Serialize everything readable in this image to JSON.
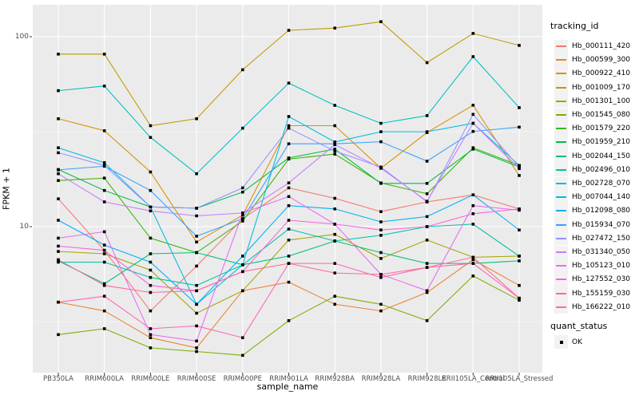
{
  "figure": {
    "y_axis": {
      "label": "FPKM + 1",
      "ticks": [
        {
          "value": 100,
          "label": "100"
        },
        {
          "value": 10,
          "label": "10"
        }
      ]
    },
    "x_axis": {
      "label": "sample_name"
    },
    "legend": {
      "tracking_title": "tracking_id",
      "quant_title": "quant_status",
      "quant_items": [
        {
          "label": "OK",
          "marker": "filled-black-square"
        }
      ]
    },
    "colors": {
      "panel_bg": "#EBEBEB",
      "grid": "#FFFFFF",
      "point": "#000000",
      "tick_text": "#4D4D4D",
      "axis_title_text": "#000000",
      "legend_key_bg": "#F2F2F2"
    }
  },
  "chart_data": {
    "type": "line",
    "title": "",
    "xlabel": "sample_name",
    "ylabel": "FPKM + 1",
    "y_scale": "log10",
    "ylim": [
      1.7,
      147
    ],
    "grid": true,
    "legend_position": "right",
    "point_marker": "black-square (quant_status = OK)",
    "categories": [
      "PB350LA",
      "RRIM600LA",
      "RRIM600LE",
      "RRIM600SE",
      "RRIM600PE",
      "RRIM901LA",
      "RRIM928BA",
      "RRIM928LA",
      "RRIM928LE",
      "RRII105LA_Control",
      "RRII105LA_Stressed"
    ],
    "series": [
      {
        "name": "Hb_000111_420",
        "color": "#F8766D",
        "values": [
          14,
          7.5,
          3.6,
          6.2,
          11,
          16,
          14.1,
          12,
          13.5,
          14.7,
          12.4
        ]
      },
      {
        "name": "Hb_000599_300",
        "color": "#EA8331",
        "values": [
          4.0,
          3.6,
          2.6,
          2.3,
          4.6,
          5.1,
          3.9,
          3.6,
          4.5,
          6.7,
          4.9
        ]
      },
      {
        "name": "Hb_000922_410",
        "color": "#D89000",
        "values": [
          37,
          32,
          19.4,
          8.3,
          11.5,
          34,
          34,
          20.3,
          31.3,
          43.6,
          18.6
        ]
      },
      {
        "name": "Hb_001009_170",
        "color": "#C09B00",
        "values": [
          81,
          81,
          34,
          37,
          67,
          108,
          111,
          120,
          73,
          104,
          90
        ]
      },
      {
        "name": "Hb_001301_100",
        "color": "#A3A500",
        "values": [
          7.4,
          7.2,
          5.9,
          3.5,
          4.6,
          8.5,
          9.1,
          6.8,
          8.5,
          6.9,
          7.0
        ]
      },
      {
        "name": "Hb_001545_080",
        "color": "#7CAE00",
        "values": [
          2.7,
          2.9,
          2.3,
          2.2,
          2.1,
          3.2,
          4.3,
          3.9,
          3.2,
          5.5,
          4.1
        ]
      },
      {
        "name": "Hb_001579_220",
        "color": "#39B600",
        "values": [
          17.5,
          18,
          8.7,
          7.3,
          10.7,
          22.7,
          24.1,
          17,
          14.9,
          26,
          21
        ]
      },
      {
        "name": "Hb_001959_210",
        "color": "#00BB4E",
        "values": [
          20,
          15.5,
          12.7,
          12.5,
          15.2,
          23,
          25.6,
          16.9,
          16.9,
          25.6,
          20.6
        ]
      },
      {
        "name": "Hb_002044_150",
        "color": "#00BF7D",
        "values": [
          6.6,
          5.0,
          7.2,
          7.3,
          6.3,
          7.0,
          8.4,
          7.3,
          6.4,
          6.4,
          6.6
        ]
      },
      {
        "name": "Hb_002496_010",
        "color": "#00C1A3",
        "values": [
          6.5,
          6.5,
          5.4,
          4.9,
          6.3,
          9.7,
          8.4,
          9.0,
          10.0,
          10.3,
          7.0
        ]
      },
      {
        "name": "Hb_002728_070",
        "color": "#00BFC4",
        "values": [
          52,
          55,
          29.5,
          19,
          33,
          57,
          43.5,
          35,
          38.4,
          78.5,
          42.3
        ]
      },
      {
        "name": "Hb_007044_140",
        "color": "#00BADE",
        "values": [
          26,
          21.7,
          12.7,
          3.9,
          6.3,
          38,
          27.9,
          31.6,
          31.6,
          35,
          21
        ]
      },
      {
        "name": "Hb_012098_080",
        "color": "#00B0F6",
        "values": [
          10.8,
          8.0,
          6.5,
          3.9,
          7.0,
          12.9,
          12.4,
          10.6,
          11.3,
          14.7,
          9.6
        ]
      },
      {
        "name": "Hb_015934_070",
        "color": "#35A2FF",
        "values": [
          19.9,
          20.8,
          15.5,
          8.9,
          11,
          27.3,
          27.3,
          28,
          22.1,
          31.7,
          33.4
        ]
      },
      {
        "name": "Hb_027472_150",
        "color": "#9590FF",
        "values": [
          24.5,
          21,
          12.7,
          12.5,
          16,
          33,
          25,
          20.6,
          13.5,
          39,
          20.6
        ]
      },
      {
        "name": "Hb_031340_050",
        "color": "#C77CFF",
        "values": [
          19,
          13.5,
          12.1,
          11.4,
          11.8,
          17,
          27,
          20.3,
          13.6,
          35,
          20.2
        ]
      },
      {
        "name": "Hb_105123_010",
        "color": "#E76BF3",
        "values": [
          8.7,
          9.4,
          2.7,
          2.5,
          11.8,
          14.4,
          10.3,
          5.6,
          4.6,
          12.9,
          12.2
        ]
      },
      {
        "name": "Hb_127552_030",
        "color": "#FA62DB",
        "values": [
          7.9,
          7.5,
          4.9,
          4.6,
          5.8,
          10.8,
          10.3,
          9.6,
          10.0,
          11.7,
          12.4
        ]
      },
      {
        "name": "Hb_155159_030",
        "color": "#FF62BC",
        "values": [
          4.0,
          4.3,
          2.9,
          3.0,
          2.6,
          6.4,
          6.4,
          5.4,
          6.1,
          6.4,
          4.2
        ]
      },
      {
        "name": "Hb_166222_010",
        "color": "#FF6A98",
        "values": [
          6.7,
          4.9,
          4.5,
          4.6,
          5.8,
          6.4,
          5.7,
          5.6,
          6.1,
          6.9,
          4.2
        ]
      }
    ]
  }
}
